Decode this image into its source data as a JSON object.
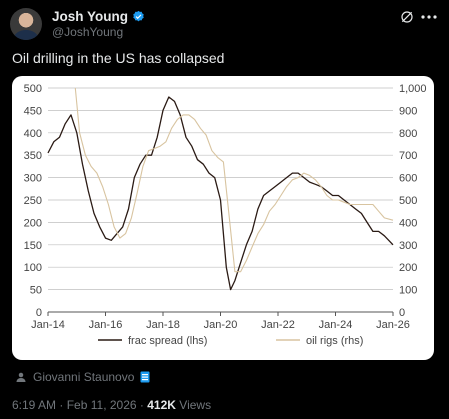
{
  "author": {
    "name": "Josh Young",
    "handle": "@JoshYoung",
    "verified_icon": "verified-badge-icon"
  },
  "header_actions": {
    "grok_icon": "grok-icon",
    "more_icon": "more-icon"
  },
  "tweet": {
    "text": "Oil drilling in the US has collapsed"
  },
  "credit": {
    "icon": "person-tag-icon",
    "text": "Giovanni Staunovo",
    "badge_icon": "document-badge-icon"
  },
  "meta": {
    "time": "6:19 AM",
    "sep1": "·",
    "date": "Feb 11, 2026",
    "sep2": "·",
    "views_count": "412K",
    "views_label": "Views"
  },
  "colors": {
    "frac": "#2a1a14",
    "rigs": "#d8c4a0",
    "grid": "#bfbfbf"
  },
  "chart_data": {
    "type": "line",
    "title": "",
    "xlabel": "",
    "ylabel_left": "",
    "ylabel_right": "",
    "x_ticks": [
      "Jan-14",
      "Jan-16",
      "Jan-18",
      "Jan-20",
      "Jan-22",
      "Jan-24",
      "Jan-26"
    ],
    "x_range": [
      2014.0,
      2026.0
    ],
    "y_left_ticks": [
      "0",
      "50",
      "100",
      "150",
      "200",
      "250",
      "300",
      "350",
      "400",
      "450",
      "500"
    ],
    "y_left_range": [
      0,
      500
    ],
    "y_right_ticks": [
      "0",
      "100",
      "200",
      "300",
      "400",
      "500",
      "600",
      "700",
      "800",
      "900",
      "1,000"
    ],
    "y_right_range": [
      0,
      1000
    ],
    "grid": "horizontal",
    "legend_position": "bottom",
    "series": [
      {
        "name": "frac spread (lhs)",
        "axis": "left",
        "x": [
          2014.0,
          2014.2,
          2014.4,
          2014.6,
          2014.8,
          2015.0,
          2015.2,
          2015.4,
          2015.6,
          2015.8,
          2016.0,
          2016.2,
          2016.4,
          2016.6,
          2016.8,
          2017.0,
          2017.2,
          2017.4,
          2017.6,
          2017.8,
          2018.0,
          2018.2,
          2018.4,
          2018.6,
          2018.8,
          2019.0,
          2019.2,
          2019.4,
          2019.6,
          2019.8,
          2020.0,
          2020.2,
          2020.35,
          2020.5,
          2020.7,
          2020.9,
          2021.1,
          2021.3,
          2021.5,
          2021.7,
          2021.9,
          2022.1,
          2022.3,
          2022.5,
          2022.7,
          2022.9,
          2023.1,
          2023.3,
          2023.5,
          2023.7,
          2023.9,
          2024.1,
          2024.3,
          2024.5,
          2024.7,
          2024.9,
          2025.1,
          2025.3,
          2025.5,
          2025.7,
          2025.85,
          2026.0
        ],
        "values": [
          355,
          380,
          390,
          420,
          440,
          400,
          330,
          270,
          220,
          190,
          165,
          160,
          175,
          190,
          230,
          300,
          330,
          350,
          350,
          390,
          450,
          480,
          470,
          440,
          390,
          370,
          340,
          330,
          310,
          300,
          250,
          100,
          50,
          70,
          110,
          150,
          180,
          230,
          260,
          270,
          280,
          290,
          300,
          310,
          310,
          300,
          290,
          285,
          280,
          270,
          260,
          260,
          250,
          240,
          230,
          220,
          200,
          180,
          180,
          170,
          160,
          150
        ]
      },
      {
        "name": "oil rigs (rhs)",
        "axis": "right",
        "x": [
          2014.95,
          2015.1,
          2015.3,
          2015.5,
          2015.7,
          2015.9,
          2016.1,
          2016.3,
          2016.5,
          2016.7,
          2016.9,
          2017.1,
          2017.3,
          2017.5,
          2017.7,
          2017.9,
          2018.1,
          2018.3,
          2018.5,
          2018.7,
          2018.9,
          2019.1,
          2019.3,
          2019.5,
          2019.7,
          2019.9,
          2020.1,
          2020.3,
          2020.5,
          2020.7,
          2020.9,
          2021.1,
          2021.3,
          2021.5,
          2021.7,
          2021.9,
          2022.1,
          2022.3,
          2022.5,
          2022.7,
          2022.9,
          2023.1,
          2023.3,
          2023.5,
          2023.7,
          2023.9,
          2024.1,
          2024.3,
          2024.5,
          2024.7,
          2024.9,
          2025.1,
          2025.3,
          2025.5,
          2025.7,
          2026.0
        ],
        "values": [
          1000,
          800,
          700,
          650,
          620,
          560,
          480,
          380,
          330,
          350,
          420,
          530,
          650,
          720,
          730,
          740,
          760,
          820,
          860,
          880,
          880,
          860,
          820,
          790,
          720,
          690,
          670,
          430,
          180,
          180,
          230,
          290,
          350,
          390,
          450,
          480,
          520,
          560,
          590,
          600,
          620,
          610,
          590,
          560,
          520,
          500,
          500,
          490,
          480,
          480,
          480,
          480,
          480,
          450,
          420,
          410
        ]
      }
    ]
  }
}
